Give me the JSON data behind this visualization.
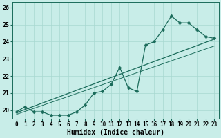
{
  "xlabel": "Humidex (Indice chaleur)",
  "bg_color": "#c8ede8",
  "line_color": "#1a6b5a",
  "grid_color": "#a8d8d0",
  "x_data": [
    0,
    1,
    2,
    3,
    4,
    5,
    6,
    7,
    8,
    9,
    10,
    11,
    12,
    13,
    14,
    15,
    16,
    17,
    18,
    19,
    20,
    21,
    22,
    23
  ],
  "y_data": [
    19.9,
    20.2,
    19.9,
    19.9,
    19.7,
    19.7,
    19.7,
    19.9,
    20.3,
    21.0,
    21.1,
    21.5,
    22.5,
    21.3,
    21.1,
    23.8,
    24.0,
    24.7,
    25.5,
    25.1,
    25.1,
    24.7,
    24.3,
    24.2
  ],
  "trend1_x": [
    0,
    23
  ],
  "trend1_y": [
    19.85,
    24.15
  ],
  "trend2_x": [
    0,
    23
  ],
  "trend2_y": [
    19.75,
    23.75
  ],
  "ylim": [
    19.5,
    26.3
  ],
  "xlim": [
    -0.5,
    23.5
  ],
  "yticks": [
    20,
    21,
    22,
    23,
    24,
    25,
    26
  ],
  "marker_size": 2.5,
  "linewidth": 0.9,
  "tick_fontsize": 5.5,
  "xlabel_fontsize": 7
}
